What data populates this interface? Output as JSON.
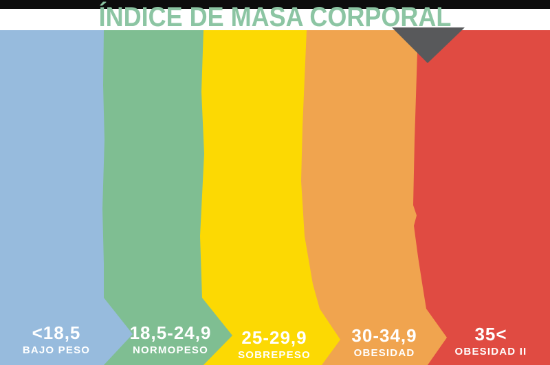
{
  "title": {
    "text": "ÍNDICE DE MASA CORPORAL"
  },
  "colors": {
    "title": "#8cc5a3",
    "top_bar": "#0d0d0d",
    "marker": "#58595b",
    "label_text": "#ffffff",
    "band_blue": "#97bbdd",
    "band_green": "#7fbe92",
    "band_yellow": "#fcd903",
    "band_orange": "#f0a44f",
    "band_red": "#e04b42"
  },
  "segments": [
    {
      "range": "<18,5",
      "label": "BAJO PESO",
      "color": "#97bbdd"
    },
    {
      "range": "18,5-24,9",
      "label": "NORMOPESO",
      "color": "#7fbe92"
    },
    {
      "range": "25-29,9",
      "label": "SOBREPESO",
      "color": "#fcd903"
    },
    {
      "range": "30-34,9",
      "label": "OBESIDAD",
      "color": "#f0a44f"
    },
    {
      "range": "35<",
      "label": "OBESIDAD II",
      "color": "#e04b42"
    }
  ],
  "marker": {
    "shape": "down-triangle",
    "points_at": "OBESIDAD II",
    "color": "#58595b"
  },
  "chart_data": {
    "type": "bar",
    "orientation": "horizontal-scale",
    "title": "ÍNDICE DE MASA CORPORAL",
    "categories": [
      "BAJO PESO",
      "NORMOPESO",
      "SOBREPESO",
      "OBESIDAD",
      "OBESIDAD II"
    ],
    "ranges": [
      "<18,5",
      "18,5-24,9",
      "25-29,9",
      "30-34,9",
      "35<"
    ],
    "range_bounds": [
      [
        null,
        18.5
      ],
      [
        18.5,
        24.9
      ],
      [
        25,
        29.9
      ],
      [
        30,
        34.9
      ],
      [
        35,
        null
      ]
    ],
    "colors": [
      "#97bbdd",
      "#7fbe92",
      "#fcd903",
      "#f0a44f",
      "#e04b42"
    ],
    "marker": {
      "shape": "down-triangle",
      "segment_index": 4,
      "color": "#58595b"
    },
    "legend": false,
    "grid": false
  }
}
